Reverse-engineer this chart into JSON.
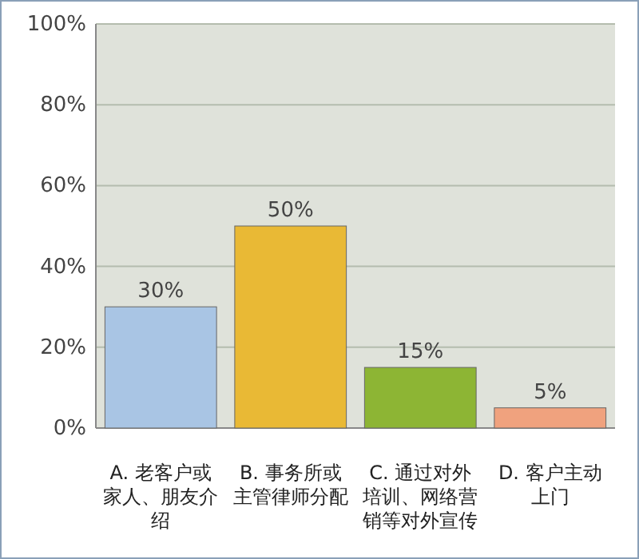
{
  "chart_data": {
    "type": "bar",
    "categories": [
      "A. 老客户或家人、朋友介绍",
      "B. 事务所或主管律师分配",
      "C. 通过对外培训、网络营销等对外宣传",
      "D. 客户主动上门"
    ],
    "values": [
      30,
      50,
      15,
      5
    ],
    "colors": [
      "#a9c5e4",
      "#e9b935",
      "#8db534",
      "#f0a27e"
    ],
    "value_labels": [
      "30%",
      "50%",
      "15%",
      "5%"
    ],
    "ylim": [
      0,
      100
    ],
    "yticks": [
      {
        "value": 0,
        "label": "0%"
      },
      {
        "value": 20,
        "label": "20%"
      },
      {
        "value": 40,
        "label": "40%"
      },
      {
        "value": 60,
        "label": "60%"
      },
      {
        "value": 80,
        "label": "80%"
      },
      {
        "value": 100,
        "label": "100%"
      }
    ],
    "grid": "y"
  }
}
